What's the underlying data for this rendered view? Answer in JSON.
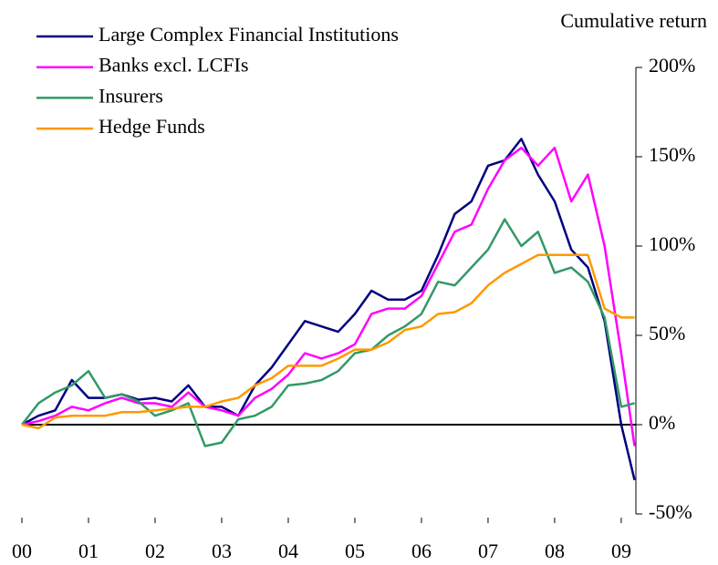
{
  "chart_data": {
    "type": "line",
    "y_axis_label": "Cumulative return",
    "x": [
      2000,
      2000.25,
      2000.5,
      2000.75,
      2001,
      2001.25,
      2001.5,
      2001.75,
      2002,
      2002.25,
      2002.5,
      2002.75,
      2003,
      2003.25,
      2003.5,
      2003.75,
      2004,
      2004.25,
      2004.5,
      2004.75,
      2005,
      2005.25,
      2005.5,
      2005.75,
      2006,
      2006.25,
      2006.5,
      2006.75,
      2007,
      2007.25,
      2007.5,
      2007.75,
      2008,
      2008.25,
      2008.5,
      2008.75,
      2009,
      2009.2
    ],
    "series": [
      {
        "name": "Large Complex Financial Institutions",
        "color": "#000080",
        "values": [
          0,
          5,
          8,
          25,
          15,
          15,
          17,
          14,
          15,
          13,
          22,
          10,
          10,
          5,
          22,
          32,
          45,
          58,
          55,
          52,
          62,
          75,
          70,
          70,
          75,
          95,
          118,
          125,
          145,
          148,
          160,
          140,
          125,
          98,
          88,
          58,
          0,
          -31
        ]
      },
      {
        "name": "Banks excl. LCFIs",
        "color": "#ff00ff",
        "values": [
          0,
          2,
          5,
          10,
          8,
          12,
          15,
          12,
          12,
          10,
          18,
          10,
          8,
          5,
          15,
          20,
          28,
          40,
          37,
          40,
          45,
          62,
          65,
          65,
          72,
          90,
          108,
          112,
          132,
          148,
          155,
          145,
          155,
          125,
          140,
          100,
          40,
          -12
        ]
      },
      {
        "name": "Insurers",
        "color": "#339966",
        "values": [
          0,
          12,
          18,
          22,
          30,
          15,
          17,
          13,
          5,
          8,
          12,
          -12,
          -10,
          3,
          5,
          10,
          22,
          23,
          25,
          30,
          40,
          42,
          50,
          55,
          62,
          80,
          78,
          88,
          98,
          115,
          100,
          108,
          85,
          88,
          80,
          60,
          10,
          12
        ]
      },
      {
        "name": "Hedge Funds",
        "color": "#ff9900",
        "values": [
          0,
          -2,
          4,
          5,
          5,
          5,
          7,
          7,
          8,
          9,
          10,
          10,
          13,
          15,
          22,
          26,
          33,
          33,
          33,
          37,
          42,
          42,
          46,
          53,
          55,
          62,
          63,
          68,
          78,
          85,
          90,
          95,
          95,
          95,
          95,
          65,
          60,
          60
        ]
      }
    ],
    "xlim": [
      2000,
      2009.22
    ],
    "xticks": [
      {
        "value": 2000,
        "label": "00"
      },
      {
        "value": 2001,
        "label": "01"
      },
      {
        "value": 2002,
        "label": "02"
      },
      {
        "value": 2003,
        "label": "03"
      },
      {
        "value": 2004,
        "label": "04"
      },
      {
        "value": 2005,
        "label": "05"
      },
      {
        "value": 2006,
        "label": "06"
      },
      {
        "value": 2007,
        "label": "07"
      },
      {
        "value": 2008,
        "label": "08"
      },
      {
        "value": 2009,
        "label": "09"
      }
    ],
    "ylim": [
      -50,
      200
    ],
    "yticks": [
      {
        "value": -50,
        "label": "-50%"
      },
      {
        "value": 0,
        "label": "0%"
      },
      {
        "value": 50,
        "label": "50%"
      },
      {
        "value": 100,
        "label": "100%"
      },
      {
        "value": 150,
        "label": "150%"
      },
      {
        "value": 200,
        "label": "200%"
      }
    ],
    "legend": "top-left"
  }
}
